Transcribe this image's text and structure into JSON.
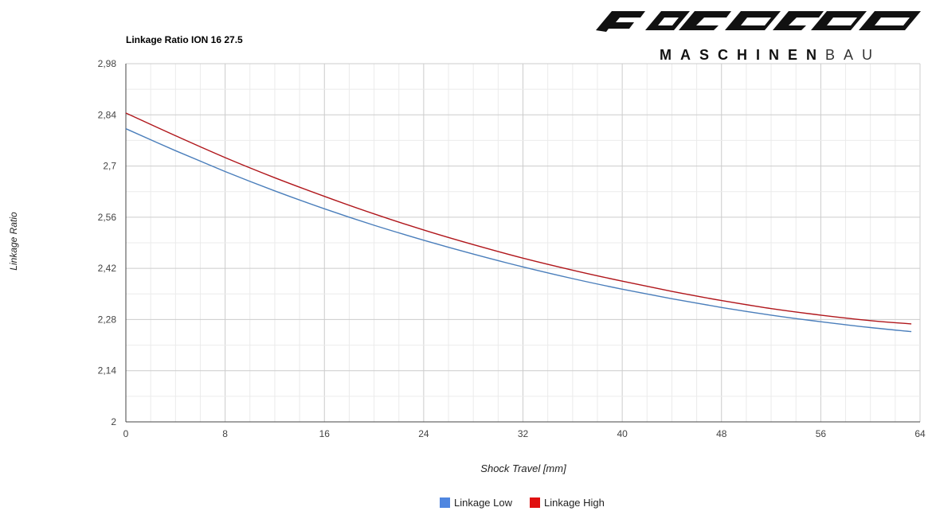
{
  "logo": {
    "brand": "NICOLAI",
    "sub_bold": "MASCHINEN",
    "sub_light": "BAU"
  },
  "chart_data": {
    "type": "line",
    "title": "Linkage Ratio ION 16 27.5",
    "xlabel": "Shock Travel [mm]",
    "ylabel": "Linkage Ratio",
    "xlim": [
      0,
      64
    ],
    "ylim": [
      2,
      2.98
    ],
    "xticks": [
      "0",
      "8",
      "16",
      "24",
      "32",
      "40",
      "48",
      "56",
      "64"
    ],
    "yticks": [
      "2",
      "2,14",
      "2,28",
      "2,42",
      "2,56",
      "2,7",
      "2,84",
      "2,98"
    ],
    "grid": true,
    "legend": "bottom",
    "series": [
      {
        "name": "Linkage Low",
        "color": "#4a7ebb",
        "legend_color": "#4f86e0",
        "x": [
          0,
          4,
          8,
          12,
          16,
          20,
          24,
          28,
          32,
          36,
          40,
          44,
          48,
          52,
          56,
          60,
          63.3
        ],
        "y": [
          2.802,
          2.742,
          2.685,
          2.632,
          2.583,
          2.538,
          2.497,
          2.459,
          2.424,
          2.392,
          2.363,
          2.337,
          2.313,
          2.292,
          2.274,
          2.258,
          2.247
        ]
      },
      {
        "name": "Linkage High",
        "color": "#b0161b",
        "legend_color": "#e01010",
        "x": [
          0,
          4,
          8,
          12,
          16,
          20,
          24,
          28,
          32,
          36,
          40,
          44,
          48,
          52,
          56,
          60,
          63.3
        ],
        "y": [
          2.845,
          2.783,
          2.723,
          2.668,
          2.617,
          2.569,
          2.525,
          2.485,
          2.448,
          2.415,
          2.385,
          2.357,
          2.332,
          2.31,
          2.292,
          2.277,
          2.268
        ]
      }
    ]
  }
}
